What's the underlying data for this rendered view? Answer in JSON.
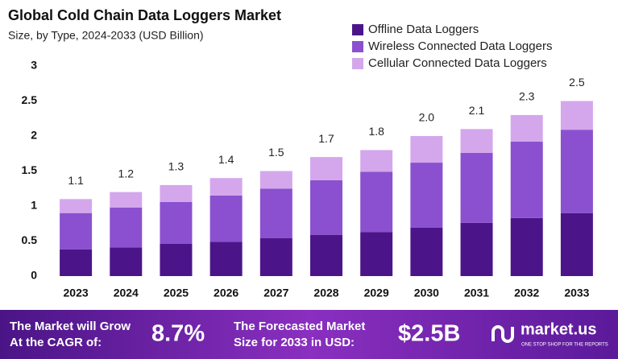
{
  "chart_data": {
    "type": "stacked_bar",
    "title": "Global Cold Chain Data Loggers Market",
    "subtitle": "Size, by Type, 2024-2033 (USD Billion)",
    "categories": [
      "2023",
      "2024",
      "2025",
      "2026",
      "2027",
      "2028",
      "2029",
      "2030",
      "2031",
      "2032",
      "2033"
    ],
    "series": [
      {
        "name": "Offline Data Loggers",
        "color": "#4b1589",
        "values": [
          0.38,
          0.41,
          0.46,
          0.49,
          0.54,
          0.59,
          0.63,
          0.69,
          0.76,
          0.83,
          0.9
        ]
      },
      {
        "name": "Wireless Connected Data Loggers",
        "color": "#8b50cf",
        "values": [
          0.52,
          0.57,
          0.6,
          0.66,
          0.71,
          0.78,
          0.86,
          0.93,
          1.0,
          1.09,
          1.19
        ]
      },
      {
        "name": "Cellular Connected Data Loggers",
        "color": "#d4a7ec",
        "values": [
          0.2,
          0.22,
          0.24,
          0.25,
          0.25,
          0.33,
          0.31,
          0.38,
          0.34,
          0.38,
          0.41
        ]
      }
    ],
    "totals": [
      1.1,
      1.2,
      1.3,
      1.4,
      1.5,
      1.7,
      1.8,
      2.0,
      2.1,
      2.3,
      2.5
    ],
    "total_labels": [
      "1.1",
      "1.2",
      "1.3",
      "1.4",
      "1.5",
      "1.7",
      "1.8",
      "2.0",
      "2.1",
      "2.3",
      "2.5"
    ],
    "ylim": [
      0,
      3
    ],
    "yticks": [
      0,
      0.5,
      1,
      1.5,
      2,
      2.5,
      3
    ],
    "grid": false,
    "legend": "top-right"
  },
  "footer": {
    "cagr_text": [
      "The Market will Grow",
      "At the CAGR of:"
    ],
    "cagr_value": "8.7%",
    "forecast_text": [
      "The Forecasted Market",
      "Size for 2033 in USD:"
    ],
    "forecast_value": "$2.5B",
    "brand": "market.us",
    "tagline": "ONE STOP SHOP FOR THE REPORTS"
  }
}
